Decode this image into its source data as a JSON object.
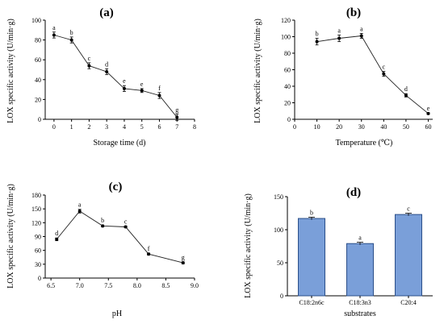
{
  "chart_data": [
    {
      "type": "line",
      "panel_label": "(a)",
      "xlabel": "Storage time (d)",
      "ylabel": "LOX specific activity (U/min·g)",
      "xlim": [
        -0.5,
        8
      ],
      "ylim": [
        0,
        100
      ],
      "xticks": [
        0,
        1,
        2,
        3,
        4,
        5,
        6,
        7,
        8
      ],
      "yticks": [
        0,
        20,
        40,
        60,
        80,
        100
      ],
      "x": [
        0,
        1,
        2,
        3,
        4,
        5,
        6,
        7
      ],
      "values": [
        85,
        80,
        54,
        48,
        31,
        29,
        24,
        2
      ],
      "errors": [
        3,
        3,
        3,
        3,
        3,
        2,
        3,
        3
      ],
      "letters": [
        "a",
        "b",
        "c",
        "d",
        "e",
        "e",
        "f",
        "g"
      ]
    },
    {
      "type": "line",
      "panel_label": "(b)",
      "xlabel": "Temperature (℃)",
      "ylabel": "LOX specific activity (U/min·g)",
      "xlim": [
        0,
        62
      ],
      "ylim": [
        0,
        120
      ],
      "xticks": [
        0,
        10,
        20,
        30,
        40,
        50,
        60
      ],
      "yticks": [
        0,
        20,
        40,
        60,
        80,
        100,
        120
      ],
      "x": [
        10,
        20,
        30,
        40,
        50,
        60
      ],
      "values": [
        94,
        98,
        101,
        55,
        29,
        7
      ],
      "errors": [
        4,
        4,
        3,
        3,
        2,
        1
      ],
      "letters": [
        "b",
        "a",
        "a",
        "c",
        "d",
        "e"
      ]
    },
    {
      "type": "line",
      "panel_label": "(c)",
      "xlabel": "pH",
      "ylabel": "LOX specific activity (U/min·g)",
      "xlim": [
        6.4,
        9.0
      ],
      "ylim": [
        0,
        180
      ],
      "xticks": [
        6.5,
        7.0,
        7.5,
        8.0,
        8.5,
        9.0
      ],
      "xtick_labels": [
        "6.5",
        "7.0",
        "7.5",
        "8.0",
        "8.5",
        "9.0"
      ],
      "yticks": [
        0,
        30,
        60,
        90,
        120,
        150,
        180
      ],
      "x": [
        6.6,
        7.0,
        7.4,
        7.8,
        8.2,
        8.8
      ],
      "values": [
        84,
        145,
        113,
        111,
        52,
        33
      ],
      "errors": [
        3,
        4,
        2,
        2,
        2,
        2
      ],
      "letters": [
        "d",
        "a",
        "b",
        "c",
        "f",
        "g"
      ]
    },
    {
      "type": "bar",
      "panel_label": "(d)",
      "xlabel": "substrates",
      "ylabel": "LOX specific activity (U/min·g)",
      "ylim": [
        0,
        150
      ],
      "yticks": [
        0,
        50,
        100,
        150
      ],
      "categories": [
        "C18:2n6c",
        "C18:3n3",
        "C20:4"
      ],
      "values": [
        117,
        79,
        123
      ],
      "errors": [
        2,
        2,
        2
      ],
      "letters": [
        "b",
        "a",
        "c"
      ],
      "bar_color": "#7a9fd9"
    }
  ]
}
